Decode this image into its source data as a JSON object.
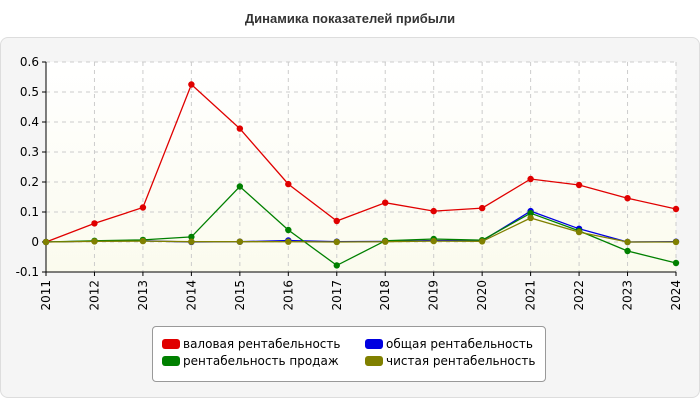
{
  "title": "Динамика показателей прибыли",
  "chart_data": {
    "type": "line",
    "x": [
      "2011",
      "2012",
      "2013",
      "2014",
      "2015",
      "2016",
      "2017",
      "2018",
      "2019",
      "2020",
      "2021",
      "2022",
      "2023",
      "2024"
    ],
    "ylim": [
      -0.1,
      0.6
    ],
    "yticks": [
      "0.6",
      "0.5",
      "0.4",
      "0.3",
      "0.2",
      "0.1",
      "0",
      "-0.1"
    ],
    "ytick_values": [
      0.6,
      0.5,
      0.4,
      0.3,
      0.2,
      0.1,
      0,
      -0.1
    ],
    "grid": true,
    "legend_position": "bottom",
    "series": [
      {
        "name": "валовая рентабельность",
        "color": "#e00000",
        "values": [
          0.0,
          0.062,
          0.115,
          0.525,
          0.378,
          0.193,
          0.07,
          0.131,
          0.103,
          0.113,
          0.21,
          0.19,
          0.146,
          0.11
        ]
      },
      {
        "name": "общая рентабельность",
        "color": "#0000e0",
        "values": [
          0.0,
          0.003,
          0.004,
          0.0,
          0.001,
          0.005,
          0.001,
          0.002,
          0.005,
          0.004,
          0.103,
          0.044,
          0.0,
          0.001
        ]
      },
      {
        "name": "рентабельность продаж",
        "color": "#008000",
        "values": [
          0.0,
          0.004,
          0.007,
          0.017,
          0.185,
          0.04,
          -0.078,
          0.004,
          0.01,
          0.006,
          0.096,
          0.037,
          -0.03,
          -0.07
        ]
      },
      {
        "name": "чистая рентабельность",
        "color": "#808000",
        "values": [
          0.0,
          0.002,
          0.003,
          0.001,
          0.001,
          0.001,
          0.0,
          0.001,
          0.003,
          0.002,
          0.08,
          0.033,
          0.0,
          0.0
        ]
      }
    ]
  }
}
